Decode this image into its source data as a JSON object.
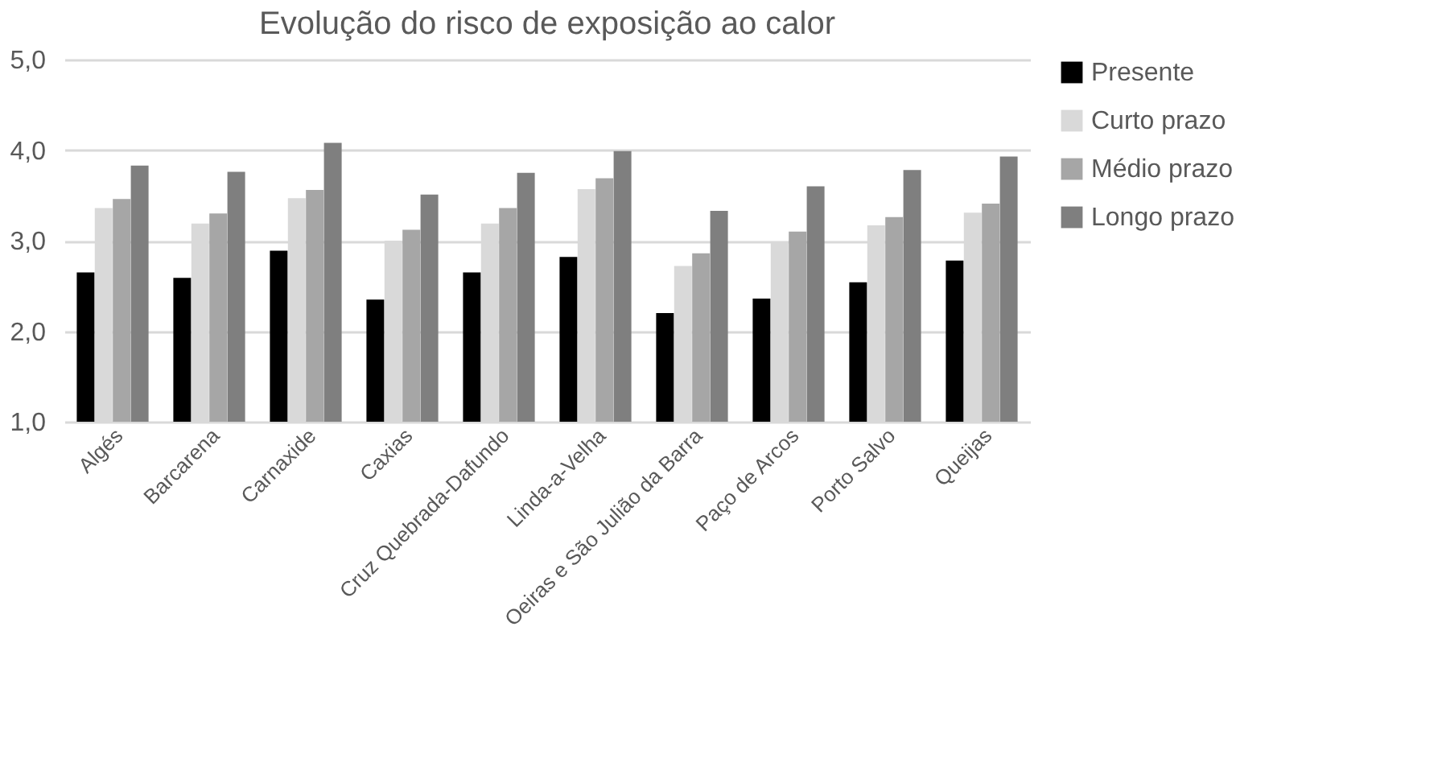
{
  "chart_data": {
    "type": "bar",
    "title": "Evolução do risco de exposição ao calor",
    "categories": [
      "Algés",
      "Barcarena",
      "Carnaxide",
      "Caxias",
      "Cruz Quebrada-Dafundo",
      "Linda-a-Velha",
      "Oeiras e São Julião da Barra",
      "Paço de Arcos",
      "Porto Salvo",
      "Queijas"
    ],
    "series": [
      {
        "name": "Presente",
        "color": "#000000",
        "values": [
          2.65,
          2.59,
          2.89,
          2.35,
          2.65,
          2.82,
          2.2,
          2.36,
          2.54,
          2.78
        ]
      },
      {
        "name": "Curto prazo",
        "color": "#d9d9d9",
        "values": [
          3.36,
          3.19,
          3.47,
          3.0,
          3.19,
          3.57,
          2.72,
          2.98,
          3.17,
          3.31
        ]
      },
      {
        "name": "Médio prazo",
        "color": "#a6a6a6",
        "values": [
          3.46,
          3.3,
          3.56,
          3.12,
          3.36,
          3.69,
          2.86,
          3.1,
          3.26,
          3.41
        ]
      },
      {
        "name": "Longo prazo",
        "color": "#7f7f7f",
        "values": [
          3.83,
          3.76,
          4.08,
          3.51,
          3.75,
          3.99,
          3.33,
          3.6,
          3.78,
          3.93
        ]
      }
    ],
    "ylim": [
      1,
      5
    ],
    "yticks": [
      {
        "value": 1,
        "label": "1,0"
      },
      {
        "value": 2,
        "label": "2,0"
      },
      {
        "value": 3,
        "label": "3,0"
      },
      {
        "value": 4,
        "label": "4,0"
      },
      {
        "value": 5,
        "label": "5,0"
      }
    ],
    "grid": "y",
    "legend": "right"
  }
}
